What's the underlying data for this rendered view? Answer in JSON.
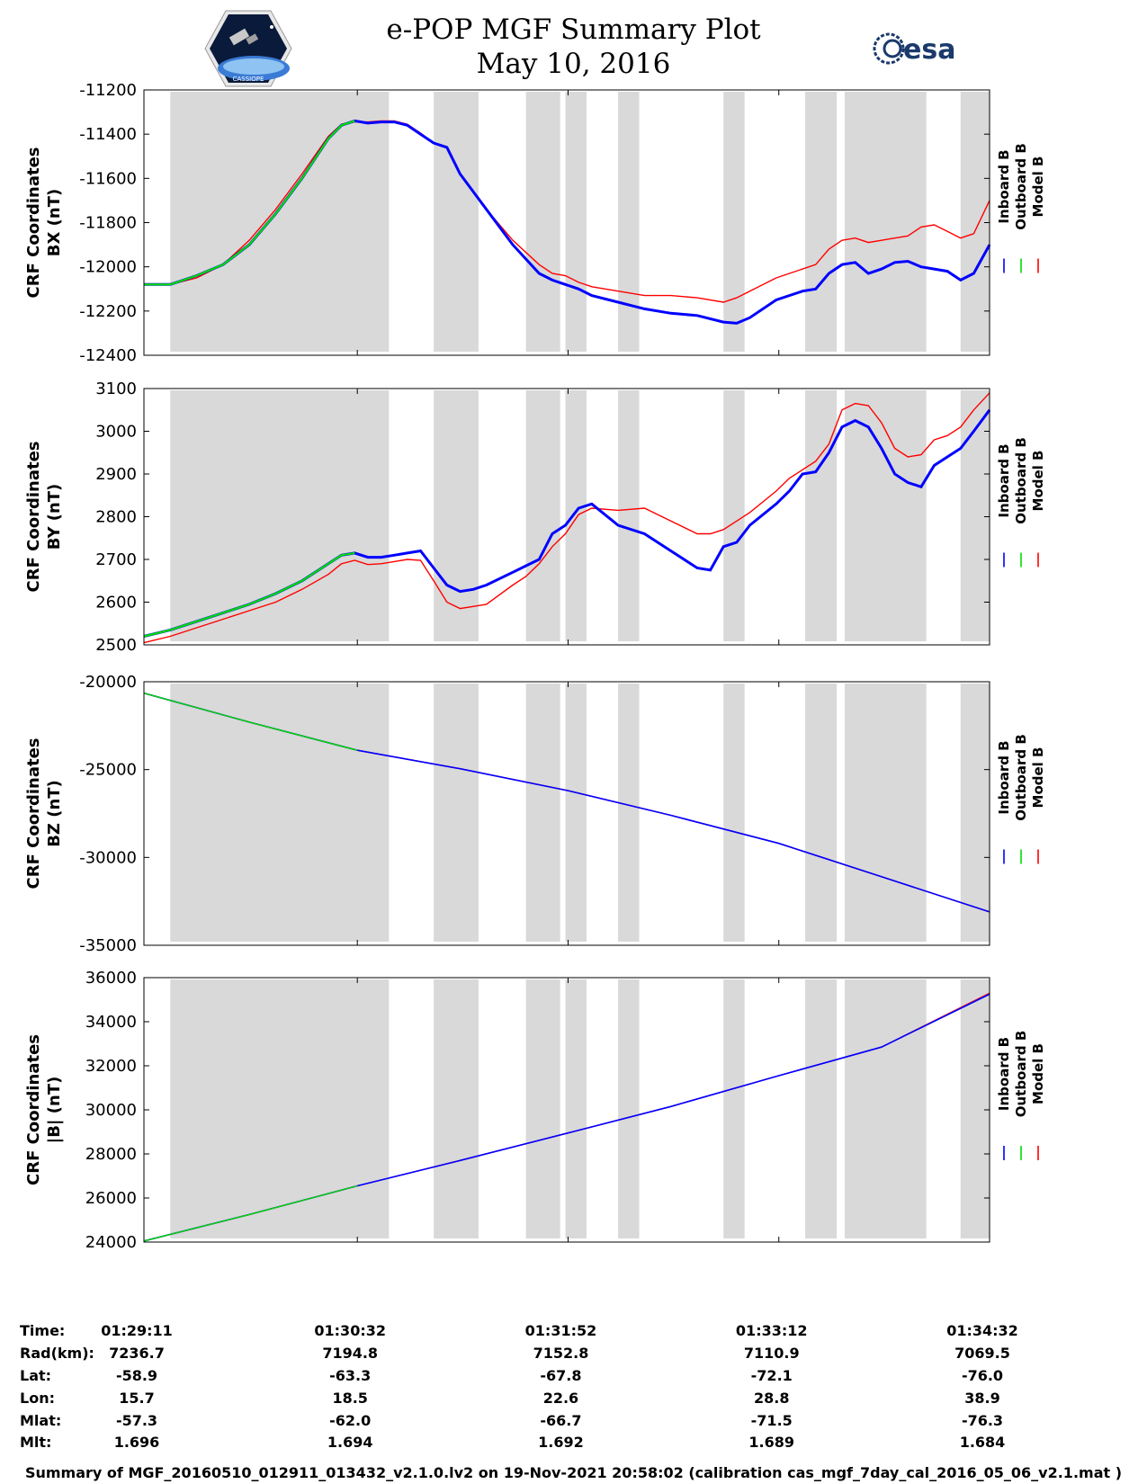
{
  "header": {
    "title": "e-POP MGF Summary Plot",
    "date": "May 10, 2016",
    "logo_left_text": "CASSIOPE",
    "logo_right_text": "esa"
  },
  "legend": [
    "Inboard B",
    "Outboard B",
    "Model B"
  ],
  "colors": {
    "inboard": "#0000ff",
    "outboard": "#00dd00",
    "model": "#ff0000",
    "shade": "#d9d9d9"
  },
  "chart_data": [
    {
      "type": "line",
      "ylabel_line1": "CRF Coordinates",
      "ylabel_line2": "BX (nT)",
      "ylim": [
        -12400,
        -11200
      ],
      "yticks": [
        -11200,
        -11400,
        -11600,
        -11800,
        -12000,
        -12200,
        -12400
      ],
      "xlim": [
        0,
        321
      ],
      "xticks_s": [
        0,
        81,
        161,
        241,
        321
      ],
      "shaded_intervals_s": [
        [
          10,
          93
        ],
        [
          110,
          127
        ],
        [
          145,
          158
        ],
        [
          160,
          168
        ],
        [
          180,
          188
        ],
        [
          220,
          228
        ],
        [
          251,
          263
        ],
        [
          266,
          297
        ],
        [
          310,
          321
        ]
      ],
      "outboard_until_s": 81,
      "series": [
        {
          "name": "Inboard B",
          "x": [
            0,
            10,
            20,
            30,
            40,
            50,
            60,
            70,
            75,
            80,
            85,
            90,
            95,
            100,
            105,
            110,
            115,
            120,
            130,
            140,
            150,
            155,
            160,
            165,
            170,
            180,
            190,
            200,
            210,
            220,
            225,
            230,
            240,
            250,
            255,
            260,
            265,
            270,
            275,
            280,
            285,
            290,
            295,
            300,
            305,
            310,
            315,
            321
          ],
          "y": [
            -12080,
            -12080,
            -12040,
            -11990,
            -11900,
            -11760,
            -11600,
            -11420,
            -11360,
            -11340,
            -11350,
            -11345,
            -11345,
            -11360,
            -11400,
            -11440,
            -11460,
            -11580,
            -11740,
            -11900,
            -12030,
            -12060,
            -12080,
            -12100,
            -12130,
            -12160,
            -12190,
            -12210,
            -12220,
            -12250,
            -12255,
            -12230,
            -12150,
            -12110,
            -12100,
            -12030,
            -11990,
            -11980,
            -12030,
            -12010,
            -11980,
            -11975,
            -12000,
            -12010,
            -12020,
            -12060,
            -12030,
            -11900
          ]
        },
        {
          "name": "Model B",
          "x": [
            0,
            10,
            20,
            30,
            40,
            50,
            60,
            70,
            75,
            80,
            85,
            90,
            95,
            100,
            105,
            110,
            115,
            120,
            130,
            140,
            150,
            155,
            160,
            165,
            170,
            180,
            190,
            200,
            210,
            220,
            225,
            230,
            240,
            250,
            255,
            260,
            265,
            270,
            275,
            280,
            285,
            290,
            295,
            300,
            305,
            310,
            315,
            321
          ],
          "y": [
            -12080,
            -12080,
            -12050,
            -11990,
            -11880,
            -11740,
            -11580,
            -11410,
            -11355,
            -11345,
            -11345,
            -11340,
            -11340,
            -11355,
            -11395,
            -11440,
            -11460,
            -11580,
            -11740,
            -11880,
            -11990,
            -12030,
            -12040,
            -12070,
            -12090,
            -12110,
            -12130,
            -12130,
            -12140,
            -12160,
            -12140,
            -12110,
            -12050,
            -12010,
            -11990,
            -11920,
            -11880,
            -11870,
            -11890,
            -11880,
            -11870,
            -11860,
            -11820,
            -11810,
            -11840,
            -11870,
            -11850,
            -11700
          ]
        }
      ]
    },
    {
      "type": "line",
      "ylabel_line1": "CRF Coordinates",
      "ylabel_line2": "BY (nT)",
      "ylim": [
        2500,
        3100
      ],
      "yticks": [
        3100,
        3000,
        2900,
        2800,
        2700,
        2600,
        2500
      ],
      "xlim": [
        0,
        321
      ],
      "xticks_s": [
        0,
        81,
        161,
        241,
        321
      ],
      "shaded_intervals_s": [
        [
          10,
          93
        ],
        [
          110,
          127
        ],
        [
          145,
          158
        ],
        [
          160,
          168
        ],
        [
          180,
          188
        ],
        [
          220,
          228
        ],
        [
          251,
          263
        ],
        [
          266,
          297
        ],
        [
          310,
          321
        ]
      ],
      "outboard_until_s": 81,
      "series": [
        {
          "name": "Inboard B",
          "x": [
            0,
            10,
            20,
            30,
            40,
            50,
            60,
            70,
            75,
            80,
            85,
            90,
            95,
            100,
            105,
            110,
            115,
            120,
            125,
            130,
            140,
            145,
            150,
            155,
            160,
            165,
            170,
            180,
            190,
            200,
            210,
            215,
            220,
            225,
            230,
            240,
            245,
            250,
            255,
            260,
            265,
            270,
            275,
            280,
            285,
            290,
            295,
            300,
            305,
            310,
            315,
            321
          ],
          "y": [
            2520,
            2535,
            2555,
            2575,
            2595,
            2620,
            2650,
            2690,
            2710,
            2715,
            2705,
            2705,
            2710,
            2715,
            2720,
            2680,
            2640,
            2625,
            2630,
            2640,
            2670,
            2685,
            2700,
            2760,
            2780,
            2820,
            2830,
            2780,
            2760,
            2720,
            2680,
            2675,
            2730,
            2740,
            2780,
            2830,
            2860,
            2900,
            2905,
            2950,
            3010,
            3025,
            3010,
            2960,
            2900,
            2880,
            2870,
            2920,
            2940,
            2960,
            3000,
            3050
          ]
        },
        {
          "name": "Model B",
          "x": [
            0,
            10,
            20,
            30,
            40,
            50,
            60,
            70,
            75,
            80,
            85,
            90,
            95,
            100,
            105,
            110,
            115,
            120,
            125,
            130,
            140,
            145,
            150,
            155,
            160,
            165,
            170,
            180,
            190,
            200,
            210,
            215,
            220,
            225,
            230,
            240,
            245,
            250,
            255,
            260,
            265,
            270,
            275,
            280,
            285,
            290,
            295,
            300,
            305,
            310,
            315,
            321
          ],
          "y": [
            2505,
            2520,
            2540,
            2560,
            2580,
            2600,
            2630,
            2665,
            2690,
            2698,
            2688,
            2690,
            2695,
            2700,
            2698,
            2650,
            2600,
            2585,
            2590,
            2595,
            2640,
            2660,
            2690,
            2730,
            2760,
            2805,
            2820,
            2815,
            2820,
            2790,
            2760,
            2760,
            2770,
            2790,
            2810,
            2860,
            2890,
            2910,
            2930,
            2970,
            3050,
            3065,
            3060,
            3020,
            2960,
            2940,
            2945,
            2980,
            2990,
            3010,
            3050,
            3090
          ]
        }
      ]
    },
    {
      "type": "line",
      "ylabel_line1": "CRF Coordinates",
      "ylabel_line2": "BZ (nT)",
      "ylim": [
        -35000,
        -20000
      ],
      "yticks": [
        -20000,
        -25000,
        -30000,
        -35000
      ],
      "xlim": [
        0,
        321
      ],
      "xticks_s": [
        0,
        81,
        161,
        241,
        321
      ],
      "shaded_intervals_s": [
        [
          10,
          93
        ],
        [
          110,
          127
        ],
        [
          145,
          158
        ],
        [
          160,
          168
        ],
        [
          180,
          188
        ],
        [
          220,
          228
        ],
        [
          251,
          263
        ],
        [
          266,
          297
        ],
        [
          310,
          321
        ]
      ],
      "outboard_until_s": 81,
      "series": [
        {
          "name": "Inboard B",
          "x": [
            0,
            40,
            81,
            120,
            161,
            200,
            241,
            280,
            321
          ],
          "y": [
            -20650,
            -22300,
            -23900,
            -24950,
            -26200,
            -27600,
            -29200,
            -31100,
            -33100
          ]
        },
        {
          "name": "Model B",
          "x": [
            0,
            40,
            81,
            120,
            161,
            200,
            241,
            280,
            321
          ],
          "y": [
            -20650,
            -22300,
            -23900,
            -24950,
            -26200,
            -27600,
            -29200,
            -31100,
            -33100
          ]
        }
      ]
    },
    {
      "type": "line",
      "ylabel_line1": "CRF Coordinates",
      "ylabel_line2": "|B| (nT)",
      "ylim": [
        24000,
        36000
      ],
      "yticks": [
        36000,
        34000,
        32000,
        30000,
        28000,
        26000,
        24000
      ],
      "xlim": [
        0,
        321
      ],
      "xticks_s": [
        0,
        81,
        161,
        241,
        321
      ],
      "shaded_intervals_s": [
        [
          10,
          93
        ],
        [
          110,
          127
        ],
        [
          145,
          158
        ],
        [
          160,
          168
        ],
        [
          180,
          188
        ],
        [
          220,
          228
        ],
        [
          251,
          263
        ],
        [
          266,
          297
        ],
        [
          310,
          321
        ]
      ],
      "outboard_until_s": 81,
      "series": [
        {
          "name": "Inboard B",
          "x": [
            0,
            40,
            81,
            120,
            161,
            200,
            241,
            280,
            321
          ],
          "y": [
            24050,
            25250,
            26550,
            27700,
            28950,
            30150,
            31550,
            32850,
            35250
          ]
        },
        {
          "name": "Model B",
          "x": [
            0,
            40,
            81,
            120,
            161,
            200,
            241,
            280,
            321
          ],
          "y": [
            24050,
            25250,
            26550,
            27700,
            28950,
            30150,
            31550,
            32850,
            35300
          ]
        }
      ]
    }
  ],
  "info": {
    "headers": [
      "Time:",
      "Rad(km):",
      "Lat:",
      "Lon:",
      "Mlat:",
      "Mlt:"
    ],
    "columns": [
      [
        "01:29:11",
        "7236.7",
        "-58.9",
        "15.7",
        "-57.3",
        "1.696"
      ],
      [
        "01:30:32",
        "7194.8",
        "-63.3",
        "18.5",
        "-62.0",
        "1.694"
      ],
      [
        "01:31:52",
        "7152.8",
        "-67.8",
        "22.6",
        "-66.7",
        "1.692"
      ],
      [
        "01:33:12",
        "7110.9",
        "-72.1",
        "28.8",
        "-71.5",
        "1.689"
      ],
      [
        "01:34:32",
        "7069.5",
        "-76.0",
        "38.9",
        "-76.3",
        "1.684"
      ]
    ]
  },
  "footer": "Summary of MGF_20160510_012911_013432_v2.1.0.lv2 on 19-Nov-2021 20:58:02 (calibration cas_mgf_7day_cal_2016_05_06_v2.1.mat )"
}
